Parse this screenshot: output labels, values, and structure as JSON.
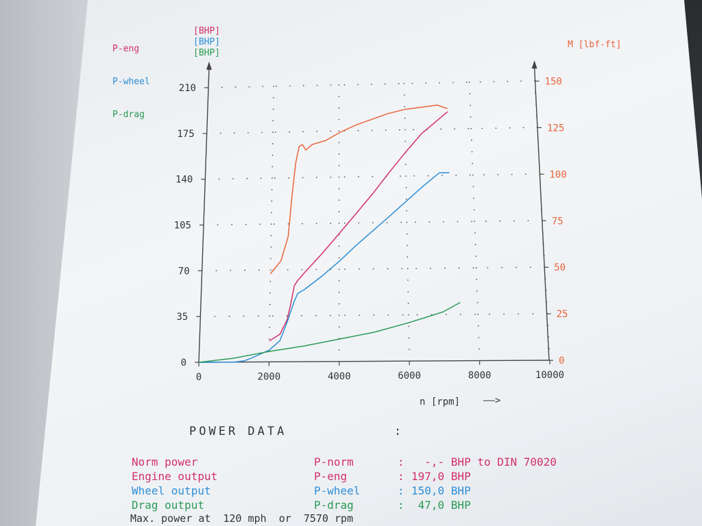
{
  "legend": {
    "eng": {
      "name": "P-eng",
      "unit": "[BHP]"
    },
    "wheel": {
      "name": "P-wheel",
      "unit": "[BHP]"
    },
    "drag": {
      "name": "P-drag",
      "unit": "[BHP]"
    }
  },
  "right_axis_unit": "M [lbf-ft]",
  "x_axis_label": "n [rpm]",
  "x_axis_arrow": "——>",
  "power_data": {
    "title": "POWER DATA",
    "colon": ":",
    "rows": [
      {
        "label": "Norm power",
        "symbol": "P-norm",
        "colon": ":",
        "value": "  -,- BHP to DIN 70020",
        "color": "#d2306a"
      },
      {
        "label": "Engine output",
        "symbol": "P-eng",
        "colon": ":",
        "value": "197,0 BHP",
        "color": "#d2306a"
      },
      {
        "label": "Wheel output",
        "symbol": "P-wheel",
        "colon": ":",
        "value": "150,0 BHP",
        "color": "#2d8fd6"
      },
      {
        "label": "Drag output",
        "symbol": "P-drag",
        "colon": ":",
        "value": " 47,0 BHP",
        "color": "#2a9a55"
      }
    ],
    "max_power_line": "Max. power at  120 mph  or  7570 rpm"
  },
  "colors": {
    "eng": "#d2306a",
    "wheel": "#2d8fd6",
    "drag": "#2a9a55",
    "torque": "#e8643a",
    "axis": "#444444"
  },
  "chart_data": {
    "type": "line",
    "xlabel": "n [rpm]",
    "ylabel_left": "[BHP]",
    "ylabel_right": "M [lbf-ft]",
    "xlim": [
      0,
      10000
    ],
    "ylim_left": [
      0,
      210
    ],
    "ylim_right": [
      0,
      150
    ],
    "x_ticks": [
      0,
      2000,
      4000,
      6000,
      8000,
      10000
    ],
    "y_left_ticks": [
      0,
      35,
      70,
      105,
      140,
      175,
      210
    ],
    "y_right_ticks": [
      0,
      25,
      50,
      75,
      100,
      125,
      150
    ],
    "grid": "dotted",
    "series": [
      {
        "name": "P-eng",
        "axis": "left",
        "color": "#d2306a",
        "x": [
          2000,
          2300,
          2500,
          2600,
          2700,
          2800,
          3000,
          3500,
          4000,
          4500,
          5000,
          5500,
          6000,
          6500,
          7000,
          7300
        ],
        "y": [
          16,
          21,
          32,
          44,
          58,
          62,
          68,
          82,
          97,
          112,
          127,
          143,
          158,
          172,
          182,
          188
        ]
      },
      {
        "name": "P-wheel",
        "axis": "left",
        "color": "#2d8fd6",
        "x": [
          0,
          1000,
          1300,
          1500,
          2000,
          2300,
          2500,
          2700,
          2800,
          3000,
          3500,
          4000,
          4500,
          5000,
          5500,
          6000,
          6500,
          7000,
          7300
        ],
        "y": [
          0,
          0,
          1,
          3,
          9,
          16,
          30,
          46,
          52,
          55,
          65,
          76,
          88,
          99,
          110,
          121,
          132,
          142,
          142
        ]
      },
      {
        "name": "P-drag",
        "axis": "left",
        "color": "#2a9a55",
        "x": [
          0,
          1000,
          2000,
          3000,
          4000,
          5000,
          6000,
          7000,
          7500
        ],
        "y": [
          0,
          3,
          8,
          12,
          17,
          22,
          29,
          37,
          44
        ]
      },
      {
        "name": "M",
        "axis": "right",
        "color": "#e8643a",
        "x": [
          2000,
          2300,
          2500,
          2600,
          2700,
          2800,
          2900,
          3000,
          3200,
          3600,
          4000,
          4500,
          5000,
          5500,
          6000,
          6500,
          7000,
          7300
        ],
        "y": [
          48,
          55,
          68,
          90,
          108,
          117,
          118,
          115,
          118,
          120,
          124,
          128,
          131,
          134,
          136,
          137,
          138,
          136
        ]
      }
    ]
  }
}
